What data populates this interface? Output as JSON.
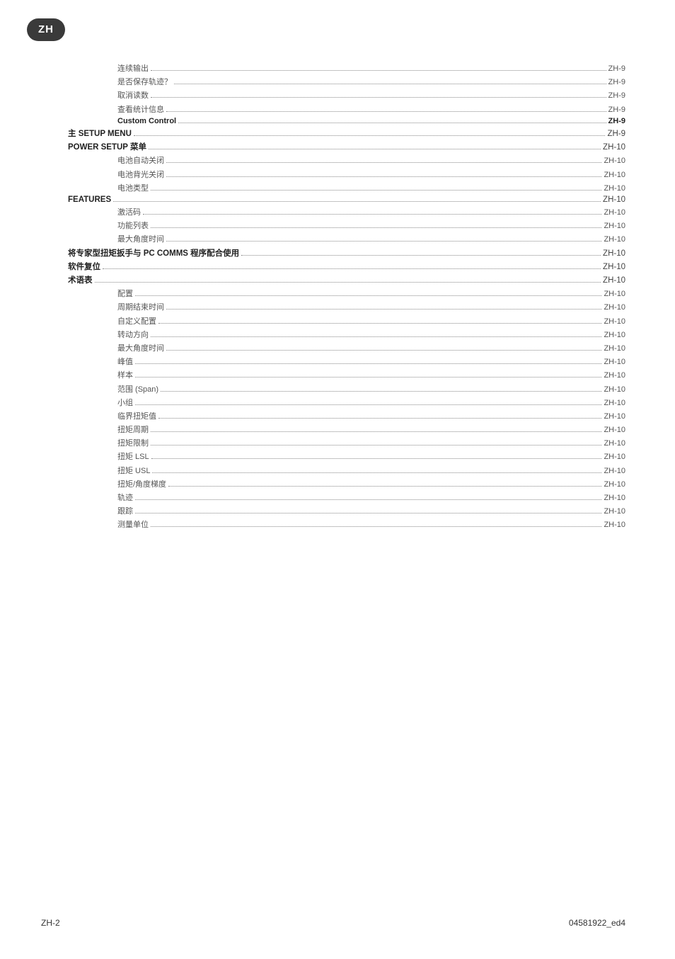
{
  "badge": "ZH",
  "footer_left": "ZH-2",
  "footer_right": "04581922_ed4",
  "toc": [
    {
      "level": "l1",
      "label": "连续输出",
      "page": "ZH-9"
    },
    {
      "level": "l1",
      "label": "是否保存轨迹？",
      "page": "ZH-9"
    },
    {
      "level": "l1",
      "label": "取消读数",
      "page": "ZH-9"
    },
    {
      "level": "l1",
      "label": "查看统计信息",
      "page": "ZH-9"
    },
    {
      "level": "l1b",
      "label": "Custom Control",
      "page": "ZH-9"
    },
    {
      "level": "l0",
      "label": "主 SETUP MENU",
      "page": "ZH-9"
    },
    {
      "level": "l0",
      "label": "POWER SETUP 菜单",
      "page": "ZH-10"
    },
    {
      "level": "l1",
      "label": "电池自动关闭",
      "page": "ZH-10"
    },
    {
      "level": "l1",
      "label": "电池背光关闭",
      "page": "ZH-10"
    },
    {
      "level": "l1",
      "label": "电池类型",
      "page": "ZH-10"
    },
    {
      "level": "l0",
      "label": "FEATURES",
      "page": "ZH-10"
    },
    {
      "level": "l1",
      "label": "激活码",
      "page": "ZH-10"
    },
    {
      "level": "l1",
      "label": "功能列表",
      "page": "ZH-10"
    },
    {
      "level": "l1",
      "label": "最大角度时间",
      "page": "ZH-10"
    },
    {
      "level": "l0",
      "label": "将专家型扭矩扳手与 PC COMMS 程序配合使用",
      "page": "ZH-10"
    },
    {
      "level": "l0",
      "label": "软件复位",
      "page": "ZH-10"
    },
    {
      "level": "l0",
      "label": "术语表",
      "page": "ZH-10"
    },
    {
      "level": "l1",
      "label": "配置",
      "page": "ZH-10"
    },
    {
      "level": "l1",
      "label": "周期结束时间",
      "page": "ZH-10"
    },
    {
      "level": "l1",
      "label": "自定义配置",
      "page": "ZH-10"
    },
    {
      "level": "l1",
      "label": "转动方向",
      "page": "ZH-10"
    },
    {
      "level": "l1",
      "label": "最大角度时间",
      "page": "ZH-10"
    },
    {
      "level": "l1",
      "label": "峰值",
      "page": "ZH-10"
    },
    {
      "level": "l1",
      "label": "样本",
      "page": "ZH-10"
    },
    {
      "level": "l1",
      "label": "范围 (Span)",
      "page": "ZH-10"
    },
    {
      "level": "l1",
      "label": "小组",
      "page": "ZH-10"
    },
    {
      "level": "l1",
      "label": "临界扭矩值",
      "page": "ZH-10"
    },
    {
      "level": "l1",
      "label": "扭矩周期",
      "page": "ZH-10"
    },
    {
      "level": "l1",
      "label": "扭矩限制",
      "page": "ZH-10"
    },
    {
      "level": "l1",
      "label": "扭矩 LSL",
      "page": "ZH-10"
    },
    {
      "level": "l1",
      "label": "扭矩 USL",
      "page": "ZH-10"
    },
    {
      "level": "l1",
      "label": "扭矩/角度梯度",
      "page": "ZH-10"
    },
    {
      "level": "l1",
      "label": "轨迹",
      "page": "ZH-10"
    },
    {
      "level": "l1",
      "label": "跟踪",
      "page": "ZH-10"
    },
    {
      "level": "l1",
      "label": "测量单位",
      "page": "ZH-10"
    }
  ]
}
